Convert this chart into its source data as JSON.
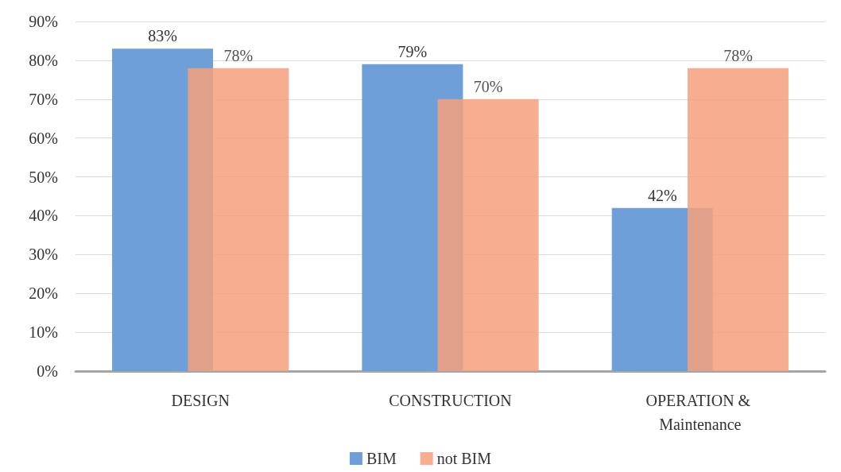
{
  "chart_data": {
    "type": "bar",
    "categories": [
      "DESIGN",
      "CONSTRUCTION",
      "OPERATION & Maintenance"
    ],
    "series": [
      {
        "name": "BIM",
        "color": "#6f9fd8",
        "values": [
          83,
          79,
          42
        ],
        "value_labels": [
          "83%",
          "79%",
          "42%"
        ]
      },
      {
        "name": "not BIM",
        "color": "#f6a07c",
        "values": [
          78,
          70,
          78
        ],
        "value_labels": [
          "78%",
          "70%",
          "78%"
        ]
      }
    ],
    "ylim": [
      0,
      90
    ],
    "yticks": [
      {
        "value": 0,
        "label": "0%"
      },
      {
        "value": 10,
        "label": "10%"
      },
      {
        "value": 20,
        "label": "20%"
      },
      {
        "value": 30,
        "label": "30%"
      },
      {
        "value": 40,
        "label": "40%"
      },
      {
        "value": 50,
        "label": "50%"
      },
      {
        "value": 60,
        "label": "60%"
      },
      {
        "value": 70,
        "label": "70%"
      },
      {
        "value": 80,
        "label": "80%"
      },
      {
        "value": 90,
        "label": "90%"
      }
    ],
    "grid": "y",
    "legend": "bottom"
  }
}
